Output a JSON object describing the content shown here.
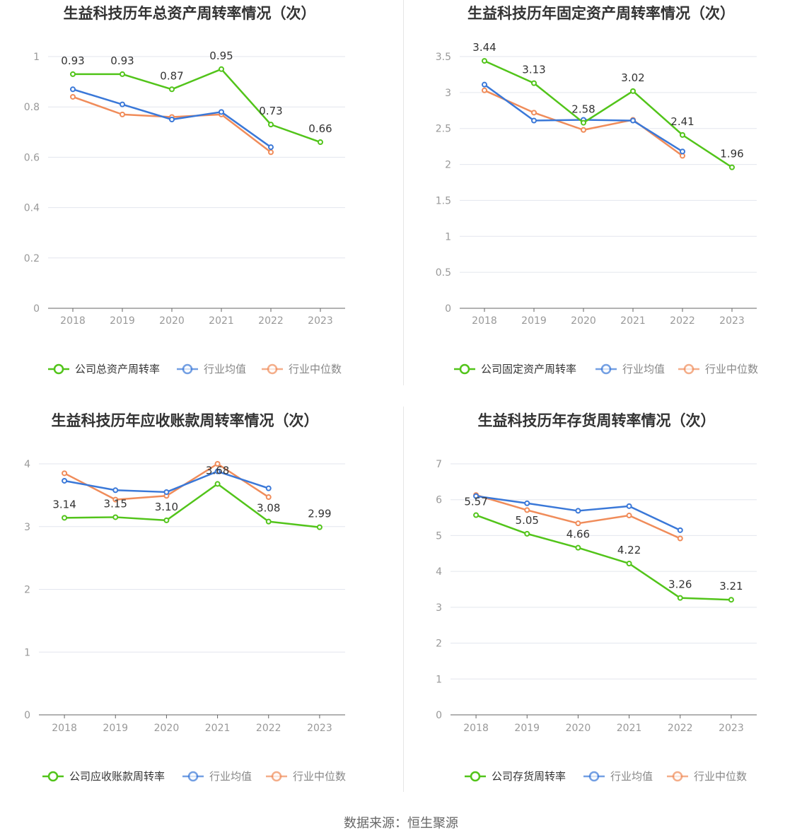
{
  "source": "数据来源：恒生聚源",
  "colors": {
    "company": "#52c41a",
    "avg": "#3a78d8",
    "median": "#f08c5a",
    "grid": "#e3e6ee",
    "axis": "#666666",
    "tick": "#999999",
    "title": "#333333"
  },
  "chart_data": [
    {
      "type": "line",
      "title": "生益科技历年总资产周转率情况（次）",
      "categories": [
        "2018",
        "2019",
        "2020",
        "2021",
        "2022",
        "2023"
      ],
      "ylim": [
        0,
        1
      ],
      "yticks": [
        "0",
        "0.2",
        "0.4",
        "0.6",
        "0.8",
        "1"
      ],
      "ytick_values": [
        0,
        0.2,
        0.4,
        0.6,
        0.8,
        1
      ],
      "grid": true,
      "legend_position": "bottom",
      "series": [
        {
          "name": "公司总资产周转率",
          "color": "#52c41a",
          "values": [
            0.93,
            0.93,
            0.87,
            0.95,
            0.73,
            0.66
          ],
          "labels": [
            "0.93",
            "0.93",
            "0.87",
            "0.95",
            "0.73",
            "0.66"
          ]
        },
        {
          "name": "行业均值",
          "color": "#3a78d8",
          "values": [
            0.87,
            0.81,
            0.75,
            0.78,
            0.64,
            null
          ]
        },
        {
          "name": "行业中位数",
          "color": "#f08c5a",
          "values": [
            0.84,
            0.77,
            0.76,
            0.77,
            0.62,
            null
          ]
        }
      ]
    },
    {
      "type": "line",
      "title": "生益科技历年固定资产周转率情况（次）",
      "categories": [
        "2018",
        "2019",
        "2020",
        "2021",
        "2022",
        "2023"
      ],
      "ylim": [
        0,
        3.5
      ],
      "yticks": [
        "0",
        "0.5",
        "1",
        "1.5",
        "2",
        "2.5",
        "3",
        "3.5"
      ],
      "ytick_values": [
        0,
        0.5,
        1,
        1.5,
        2,
        2.5,
        3,
        3.5
      ],
      "grid": true,
      "legend_position": "bottom",
      "series": [
        {
          "name": "公司固定资产周转率",
          "color": "#52c41a",
          "values": [
            3.44,
            3.13,
            2.58,
            3.02,
            2.41,
            1.96
          ],
          "labels": [
            "3.44",
            "3.13",
            "2.58",
            "3.02",
            "2.41",
            "1.96"
          ]
        },
        {
          "name": "行业均值",
          "color": "#3a78d8",
          "values": [
            3.11,
            2.61,
            2.62,
            2.61,
            2.18,
            null
          ]
        },
        {
          "name": "行业中位数",
          "color": "#f08c5a",
          "values": [
            3.03,
            2.72,
            2.48,
            2.62,
            2.12,
            null
          ]
        }
      ]
    },
    {
      "type": "line",
      "title": "生益科技历年应收账款周转率情况（次）",
      "categories": [
        "2018",
        "2019",
        "2020",
        "2021",
        "2022",
        "2023"
      ],
      "ylim": [
        0,
        4
      ],
      "yticks": [
        "0",
        "1",
        "2",
        "3",
        "4"
      ],
      "ytick_values": [
        0,
        1,
        2,
        3,
        4
      ],
      "grid": true,
      "legend_position": "bottom",
      "series": [
        {
          "name": "公司应收账款周转率",
          "color": "#52c41a",
          "values": [
            3.14,
            3.15,
            3.1,
            3.68,
            3.08,
            2.99
          ],
          "labels": [
            "3.14",
            "3.15",
            "3.10",
            "3.68",
            "3.08",
            "2.99"
          ]
        },
        {
          "name": "行业均值",
          "color": "#3a78d8",
          "values": [
            3.73,
            3.58,
            3.55,
            3.88,
            3.61,
            null
          ]
        },
        {
          "name": "行业中位数",
          "color": "#f08c5a",
          "values": [
            3.85,
            3.43,
            3.49,
            4.0,
            3.47,
            null
          ]
        }
      ]
    },
    {
      "type": "line",
      "title": "生益科技历年存货周转率情况（次）",
      "categories": [
        "2018",
        "2019",
        "2020",
        "2021",
        "2022",
        "2023"
      ],
      "ylim": [
        0,
        7
      ],
      "yticks": [
        "0",
        "1",
        "2",
        "3",
        "4",
        "5",
        "6",
        "7"
      ],
      "ytick_values": [
        0,
        1,
        2,
        3,
        4,
        5,
        6,
        7
      ],
      "grid": true,
      "legend_position": "bottom",
      "series": [
        {
          "name": "公司存货周转率",
          "color": "#52c41a",
          "values": [
            5.57,
            5.05,
            4.66,
            4.22,
            3.26,
            3.21
          ],
          "labels": [
            "5.57",
            "5.05",
            "4.66",
            "4.22",
            "3.26",
            "3.21"
          ]
        },
        {
          "name": "行业均值",
          "color": "#3a78d8",
          "values": [
            6.1,
            5.9,
            5.69,
            5.82,
            5.15,
            null
          ]
        },
        {
          "name": "行业中位数",
          "color": "#f08c5a",
          "values": [
            6.13,
            5.71,
            5.34,
            5.56,
            4.92,
            null
          ]
        }
      ]
    }
  ]
}
